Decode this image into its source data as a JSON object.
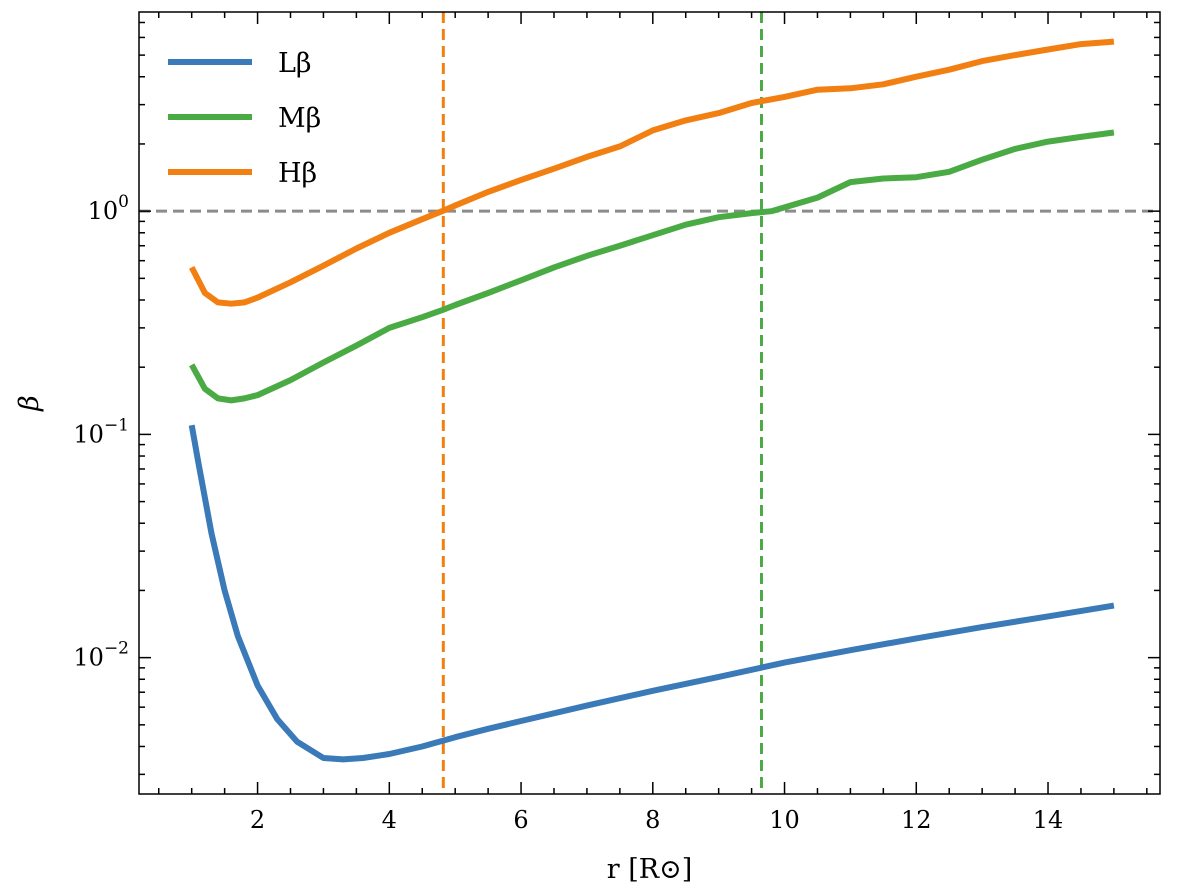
{
  "chart_data": {
    "type": "line",
    "xlabel": "r [R⊙]",
    "ylabel": "β",
    "xlim": [
      0.2,
      15.7
    ],
    "ylim": [
      0.00245,
      7.8
    ],
    "yscale": "log",
    "x_ticks": [
      2,
      4,
      6,
      8,
      10,
      12,
      14
    ],
    "y_ticks": [
      0.01,
      0.1,
      1
    ],
    "y_tick_labels": [
      {
        "base": "10",
        "exp": "−2"
      },
      {
        "base": "10",
        "exp": "−1"
      },
      {
        "base": "10",
        "exp": "0"
      }
    ],
    "grid": false,
    "legend_position": "top-left",
    "series": [
      {
        "name": "Lβ",
        "color": "#3a7ab8",
        "x": [
          1.0,
          1.1,
          1.2,
          1.3,
          1.5,
          1.7,
          2.0,
          2.3,
          2.6,
          3.0,
          3.3,
          3.6,
          4.0,
          4.5,
          5.0,
          5.5,
          6.0,
          7.0,
          8.0,
          9.0,
          10.0,
          11.0,
          12.0,
          13.0,
          14.0,
          15.0
        ],
        "y": [
          0.11,
          0.075,
          0.052,
          0.036,
          0.02,
          0.0125,
          0.0075,
          0.0053,
          0.0042,
          0.00355,
          0.0035,
          0.00355,
          0.0037,
          0.004,
          0.0044,
          0.0048,
          0.0052,
          0.0061,
          0.0071,
          0.0082,
          0.0095,
          0.0108,
          0.0122,
          0.0137,
          0.0153,
          0.0171
        ]
      },
      {
        "name": "Mβ",
        "color": "#4aab45",
        "x": [
          1.0,
          1.2,
          1.4,
          1.6,
          1.8,
          2.0,
          2.5,
          3.0,
          3.5,
          4.0,
          4.5,
          4.8,
          5.0,
          5.5,
          6.0,
          6.5,
          7.0,
          7.5,
          8.0,
          8.5,
          9.0,
          9.5,
          9.8,
          10.0,
          10.5,
          11.0,
          11.5,
          12.0,
          12.5,
          13.0,
          13.5,
          14.0,
          14.5,
          15.0
        ],
        "y": [
          0.205,
          0.16,
          0.145,
          0.142,
          0.145,
          0.15,
          0.175,
          0.21,
          0.25,
          0.3,
          0.335,
          0.36,
          0.38,
          0.43,
          0.49,
          0.56,
          0.63,
          0.7,
          0.78,
          0.87,
          0.94,
          0.98,
          1.0,
          1.04,
          1.15,
          1.35,
          1.4,
          1.42,
          1.5,
          1.7,
          1.9,
          2.05,
          2.15,
          2.25
        ]
      },
      {
        "name": "Hβ",
        "color": "#f27f12",
        "x": [
          1.0,
          1.2,
          1.4,
          1.6,
          1.8,
          2.0,
          2.5,
          3.0,
          3.5,
          4.0,
          4.5,
          4.8,
          5.0,
          5.5,
          6.0,
          6.5,
          7.0,
          7.5,
          8.0,
          8.5,
          9.0,
          9.5,
          10.0,
          10.5,
          11.0,
          11.5,
          12.0,
          12.5,
          13.0,
          13.5,
          14.0,
          14.5,
          15.0
        ],
        "y": [
          0.56,
          0.43,
          0.39,
          0.385,
          0.39,
          0.41,
          0.48,
          0.57,
          0.68,
          0.8,
          0.92,
          1.0,
          1.06,
          1.22,
          1.38,
          1.55,
          1.75,
          1.95,
          2.3,
          2.55,
          2.75,
          3.05,
          3.25,
          3.5,
          3.55,
          3.7,
          4.0,
          4.3,
          4.7,
          5.0,
          5.3,
          5.6,
          5.75
        ]
      }
    ],
    "reference_lines": [
      {
        "orientation": "horizontal",
        "value": 1.0,
        "color": "#8c8c8c",
        "style": "dashed"
      },
      {
        "orientation": "vertical",
        "value": 4.82,
        "color": "#f27f12",
        "style": "dashed"
      },
      {
        "orientation": "vertical",
        "value": 9.65,
        "color": "#4aab45",
        "style": "dashed"
      }
    ]
  }
}
